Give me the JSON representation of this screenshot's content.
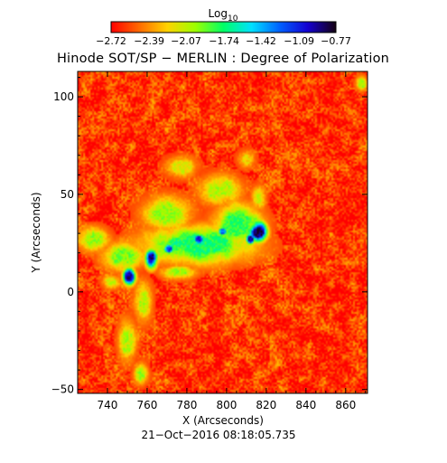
{
  "chart_data": {
    "type": "heatmap",
    "title": "Hinode SOT/SP − MERLIN : Degree of Polarization",
    "xlabel": "X (Arcseconds)",
    "ylabel": "Y (Arcseconds)",
    "xlim": [
      725,
      871
    ],
    "ylim": [
      -52,
      113
    ],
    "x_ticks": [
      "740",
      "760",
      "780",
      "800",
      "820",
      "840",
      "860"
    ],
    "x_tick_values": [
      740,
      760,
      780,
      800,
      820,
      840,
      860
    ],
    "y_ticks": [
      "−50",
      "0",
      "50",
      "100"
    ],
    "y_tick_values": [
      -50,
      0,
      50,
      100
    ],
    "grid": false,
    "colorbar": {
      "title": "Log",
      "title_subscript": "10",
      "labels": [
        "−2.72",
        "−2.39",
        "−2.07",
        "−1.74",
        "−1.42",
        "−1.09",
        "−0.77"
      ],
      "values": [
        -2.72,
        -2.39,
        -2.07,
        -1.74,
        -1.42,
        -1.09,
        -0.77
      ],
      "range": [
        -2.72,
        -0.77
      ],
      "colormap_stops": [
        "#ff0000",
        "#ff6a00",
        "#ffd200",
        "#9cff00",
        "#00ff66",
        "#00e0ff",
        "#0060ff",
        "#1400d0",
        "#140010"
      ]
    },
    "background_level": -2.6,
    "features": [
      {
        "name": "pore",
        "x": 816,
        "y": 31,
        "rx": 5,
        "ry": 6,
        "level": -0.85
      },
      {
        "name": "pore",
        "x": 812,
        "y": 27,
        "rx": 2.5,
        "ry": 3,
        "level": -0.95
      },
      {
        "name": "pore",
        "x": 762,
        "y": 17,
        "rx": 3.5,
        "ry": 6,
        "level": -0.95
      },
      {
        "name": "pore",
        "x": 751,
        "y": 8,
        "rx": 3.5,
        "ry": 5,
        "level": -0.95
      },
      {
        "name": "pore",
        "x": 786,
        "y": 27,
        "rx": 3,
        "ry": 3,
        "level": -1.1
      },
      {
        "name": "pore",
        "x": 771,
        "y": 22,
        "rx": 3,
        "ry": 3,
        "level": -1.15
      },
      {
        "name": "pore",
        "x": 798,
        "y": 31,
        "rx": 2.5,
        "ry": 2.5,
        "level": -1.25
      },
      {
        "name": "plage",
        "x": 785,
        "y": 24,
        "rx": 32,
        "ry": 11,
        "level": -1.75
      },
      {
        "name": "plage",
        "x": 806,
        "y": 35,
        "rx": 14,
        "ry": 12,
        "level": -1.8
      },
      {
        "name": "plage",
        "x": 770,
        "y": 40,
        "rx": 14,
        "ry": 10,
        "level": -2.0
      },
      {
        "name": "plage",
        "x": 797,
        "y": 52,
        "rx": 12,
        "ry": 9,
        "level": -2.05
      },
      {
        "name": "plage",
        "x": 748,
        "y": 18,
        "rx": 12,
        "ry": 8,
        "level": -1.95
      },
      {
        "name": "plage",
        "x": 733,
        "y": 27,
        "rx": 9,
        "ry": 7,
        "level": -2.0
      },
      {
        "name": "plage",
        "x": 758,
        "y": -5,
        "rx": 5,
        "ry": 12,
        "level": -2.05
      },
      {
        "name": "plage",
        "x": 750,
        "y": -25,
        "rx": 5,
        "ry": 12,
        "level": -2.05
      },
      {
        "name": "plage",
        "x": 757,
        "y": -42,
        "rx": 4,
        "ry": 6,
        "level": -2.0
      },
      {
        "name": "plage",
        "x": 777,
        "y": 64,
        "rx": 9,
        "ry": 6,
        "level": -2.15
      },
      {
        "name": "plage",
        "x": 810,
        "y": 68,
        "rx": 5,
        "ry": 5,
        "level": -2.2
      },
      {
        "name": "plage",
        "x": 816,
        "y": 48,
        "rx": 4,
        "ry": 7,
        "level": -2.1
      },
      {
        "name": "plage",
        "x": 776,
        "y": 10,
        "rx": 10,
        "ry": 4,
        "level": -2.0
      },
      {
        "name": "plage",
        "x": 868,
        "y": 107,
        "rx": 3,
        "ry": 4,
        "level": -2.0
      },
      {
        "name": "plage",
        "x": 742,
        "y": 5,
        "rx": 5,
        "ry": 4,
        "level": -2.1
      }
    ]
  },
  "footer": {
    "date": "21−Oct−2016 08:18:05.735"
  }
}
